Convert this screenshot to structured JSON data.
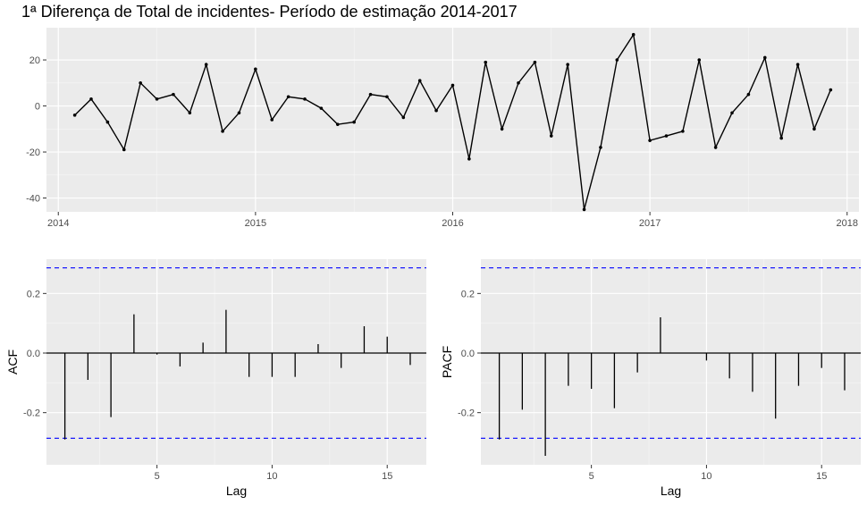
{
  "title": "1ª Diferença de Total de incidentes- Período de estimação 2014-2017",
  "chart_data": [
    {
      "type": "line",
      "title": "1ª Diferença de Total de incidentes- Período de estimação 2014-2017",
      "xlabel": "",
      "ylabel": "",
      "x_ticks": [
        "2014",
        "2015",
        "2016",
        "2017",
        "2018"
      ],
      "y_ticks": [
        20,
        0,
        -20,
        -40
      ],
      "xlim": [
        2013.94,
        2018.06
      ],
      "ylim": [
        -46,
        34
      ],
      "start": 2014.0833,
      "step": 0.08333,
      "values": [
        -4,
        3,
        -7,
        -19,
        10,
        3,
        5,
        -3,
        18,
        -11,
        -3,
        16,
        -6,
        4,
        3,
        -1,
        -8,
        -7,
        5,
        4,
        -5,
        11,
        -2,
        9,
        -23,
        19,
        -10,
        10,
        19,
        -13,
        18,
        -45,
        -18,
        20,
        31,
        -15,
        -13,
        -11,
        20,
        -18,
        -3,
        5,
        21,
        -14,
        18,
        -10,
        7
      ],
      "grid": true
    },
    {
      "type": "bar",
      "title": "",
      "xlabel": "Lag",
      "ylabel": "ACF",
      "x_ticks": [
        5,
        10,
        15
      ],
      "y_ticks": [
        0.2,
        0.0,
        -0.2
      ],
      "y_tick_labels": [
        "0.2",
        "0.0",
        "-0.2"
      ],
      "xlim": [
        0.2,
        16.7
      ],
      "ylim": [
        -0.375,
        0.315
      ],
      "lags": [
        1,
        2,
        3,
        4,
        5,
        6,
        7,
        8,
        9,
        10,
        11,
        12,
        13,
        14,
        15,
        16
      ],
      "values": [
        -0.29,
        -0.09,
        -0.215,
        0.13,
        -0.005,
        -0.045,
        0.035,
        0.145,
        -0.08,
        -0.08,
        -0.08,
        0.03,
        -0.05,
        0.09,
        0.055,
        -0.04
      ],
      "confidence_bound": 0.286,
      "grid": true
    },
    {
      "type": "bar",
      "title": "",
      "xlabel": "Lag",
      "ylabel": "PACF",
      "x_ticks": [
        5,
        10,
        15
      ],
      "y_ticks": [
        0.2,
        0.0,
        -0.2
      ],
      "y_tick_labels": [
        "0.2",
        "0.0",
        "-0.2"
      ],
      "xlim": [
        0.2,
        16.7
      ],
      "ylim": [
        -0.375,
        0.315
      ],
      "lags": [
        1,
        2,
        3,
        4,
        5,
        6,
        7,
        8,
        9,
        10,
        11,
        12,
        13,
        14,
        15,
        16
      ],
      "values": [
        -0.29,
        -0.19,
        -0.345,
        -0.11,
        -0.12,
        -0.185,
        -0.065,
        0.12,
        0.0,
        -0.025,
        -0.085,
        -0.13,
        -0.22,
        -0.11,
        -0.05,
        -0.125
      ],
      "confidence_bound": 0.286,
      "grid": true
    }
  ]
}
